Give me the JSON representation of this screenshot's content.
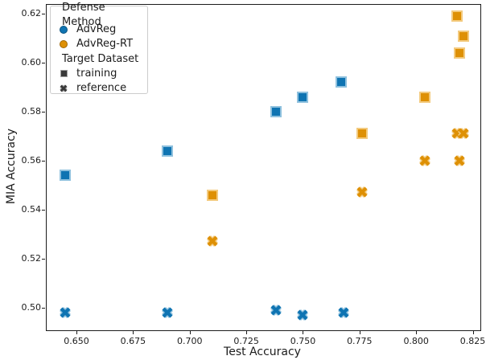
{
  "figure": {
    "kind": "matplotlib-scatter-screenshot"
  },
  "colors": {
    "blue": "#0f74b2",
    "blue_edge": "#8fc1de",
    "blue_dark_edge": "#0b5380",
    "orange": "#de9005",
    "orange_edge": "#f3ca7e",
    "orange_dark_edge": "#a06703",
    "gray": "#3a3a3a",
    "gray_edge": "#a0a0a0",
    "spine": "#1c1c1c"
  },
  "legend": {
    "sections": [
      {
        "title": "Defense Method",
        "items": [
          {
            "label": "AdvReg",
            "marker": "circle",
            "color_key": "blue"
          },
          {
            "label": "AdvReg-RT",
            "marker": "circle",
            "color_key": "orange"
          }
        ]
      },
      {
        "title": "Target Dataset",
        "items": [
          {
            "label": "training",
            "marker": "square",
            "color_key": "gray"
          },
          {
            "label": "reference",
            "marker": "X",
            "color_key": "gray"
          }
        ]
      }
    ]
  },
  "chart_data": {
    "type": "scatter",
    "title": "",
    "xlabel": "Test Accuracy",
    "ylabel": "MIA Accuracy",
    "xlim": [
      0.6365,
      0.828
    ],
    "ylim": [
      0.491,
      0.624
    ],
    "x_ticks": [
      0.65,
      0.675,
      0.7,
      0.725,
      0.75,
      0.775,
      0.8,
      0.825
    ],
    "x_tick_labels": [
      "0.650",
      "0.675",
      "0.700",
      "0.725",
      "0.750",
      "0.775",
      "0.800",
      "0.825"
    ],
    "y_ticks": [
      0.5,
      0.52,
      0.54,
      0.56,
      0.58,
      0.6,
      0.62
    ],
    "y_tick_labels": [
      "0.50",
      "0.52",
      "0.54",
      "0.56",
      "0.58",
      "0.60",
      "0.62"
    ],
    "grid": false,
    "legend_position": "upper left",
    "series": [
      {
        "name": "AdvReg / training",
        "defense": "AdvReg",
        "dataset": "training",
        "marker": "square",
        "color_key": "blue",
        "points": [
          [
            0.645,
            0.554
          ],
          [
            0.69,
            0.564
          ],
          [
            0.738,
            0.58
          ],
          [
            0.75,
            0.586
          ],
          [
            0.767,
            0.592
          ]
        ]
      },
      {
        "name": "AdvReg / reference",
        "defense": "AdvReg",
        "dataset": "reference",
        "marker": "X",
        "color_key": "blue",
        "points": [
          [
            0.645,
            0.498
          ],
          [
            0.69,
            0.498
          ],
          [
            0.738,
            0.499
          ],
          [
            0.75,
            0.497
          ],
          [
            0.768,
            0.498
          ]
        ]
      },
      {
        "name": "AdvReg-RT / training",
        "defense": "AdvReg-RT",
        "dataset": "training",
        "marker": "square",
        "color_key": "orange",
        "points": [
          [
            0.71,
            0.546
          ],
          [
            0.776,
            0.571
          ],
          [
            0.804,
            0.586
          ],
          [
            0.818,
            0.619
          ],
          [
            0.821,
            0.611
          ],
          [
            0.819,
            0.604
          ]
        ]
      },
      {
        "name": "AdvReg-RT / reference",
        "defense": "AdvReg-RT",
        "dataset": "reference",
        "marker": "X",
        "color_key": "orange",
        "points": [
          [
            0.71,
            0.527
          ],
          [
            0.776,
            0.547
          ],
          [
            0.804,
            0.56
          ],
          [
            0.818,
            0.571
          ],
          [
            0.821,
            0.571
          ],
          [
            0.819,
            0.56
          ]
        ]
      }
    ]
  }
}
